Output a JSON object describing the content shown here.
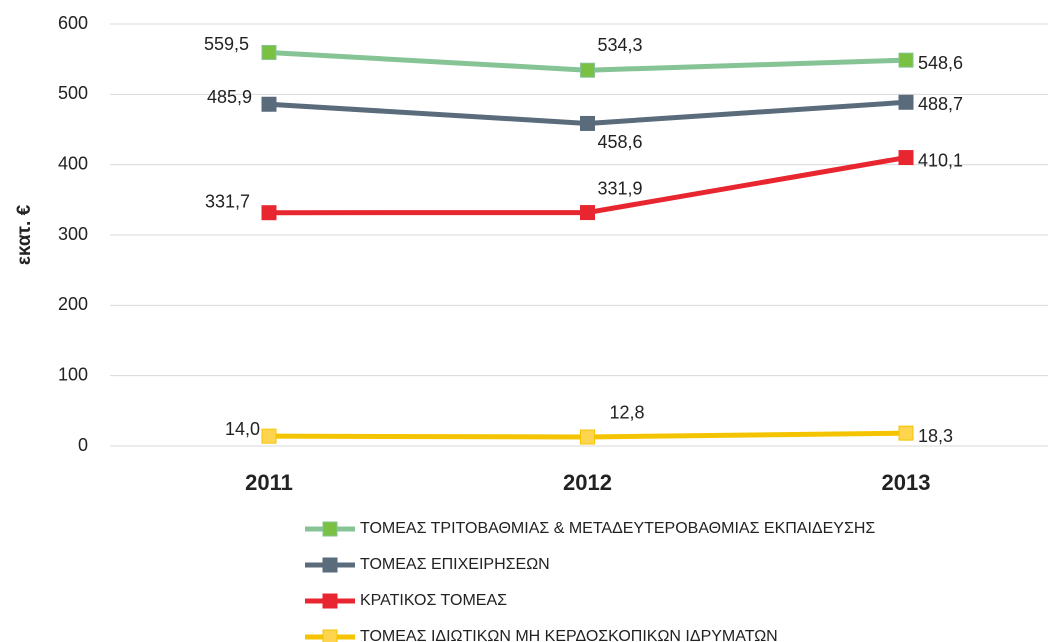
{
  "chart_data": {
    "type": "line",
    "y_label": "εκατ. €",
    "categories": [
      "2011",
      "2012",
      "2013"
    ],
    "series": [
      {
        "name": "ΤΟΜΕΑΣ ΤΡΙΤΟΒΑΘΜΙΑΣ & ΜΕΤΑΔΕΥΤΕΡΟΒΑΘΜΙΑΣ ΕΚΠΑΙΔΕΥΣΗΣ",
        "color": "#86c395",
        "marker_color": "#7ac143",
        "values": [
          559.5,
          534.3,
          548.6
        ],
        "value_labels": [
          "559,5",
          "534,3",
          "548,6"
        ]
      },
      {
        "name": "ΤΟΜΕΑΣ ΕΠΙΧΕΙΡΗΣΕΩΝ",
        "color": "#5a6b7b",
        "marker_color": "#5a6b7b",
        "values": [
          485.9,
          458.6,
          488.7
        ],
        "value_labels": [
          "485,9",
          "458,6",
          "488,7"
        ]
      },
      {
        "name": "ΚΡΑΤΙΚΟΣ ΤΟΜΕΑΣ",
        "color": "#e8262f",
        "marker_color": "#e8262f",
        "values": [
          331.7,
          331.9,
          410.1
        ],
        "value_labels": [
          "331,7",
          "331,9",
          "410,1"
        ]
      },
      {
        "name": "ΤΟΜΕΑΣ ΙΔΙΩΤΙΚΩΝ ΜΗ ΚΕΡΔΟΣΚΟΠΙΚΩΝ ΙΔΡΥΜΑΤΩΝ",
        "color": "#f5c400",
        "marker_color": "#ffd54f",
        "values": [
          14.0,
          12.8,
          18.3
        ],
        "value_labels": [
          "14,0",
          "12,8",
          "18,3"
        ]
      }
    ],
    "ylim": [
      0,
      600
    ],
    "yticks": [
      0,
      100,
      200,
      300,
      400,
      500,
      600
    ],
    "grid": true
  }
}
